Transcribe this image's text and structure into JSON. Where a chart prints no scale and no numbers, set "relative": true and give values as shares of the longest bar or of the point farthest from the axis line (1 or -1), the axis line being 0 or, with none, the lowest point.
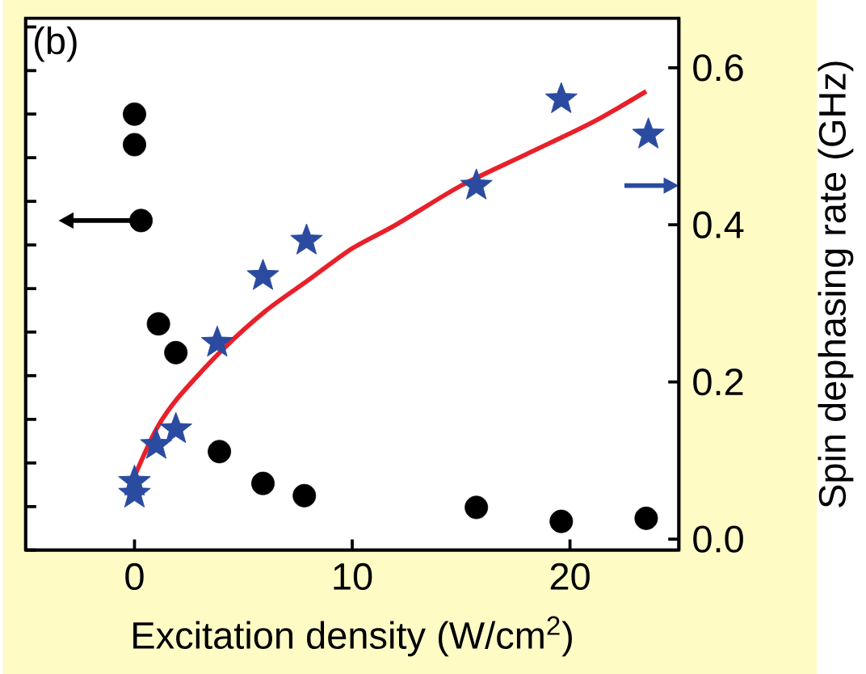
{
  "chart_data": {
    "type": "scatter",
    "relative": true,
    "xlabel": "Excitation density (W/cm$^{2}$)",
    "y2label": "Spin dephasing rate (GHz)",
    "annotations": [
      "(b)"
    ],
    "xlim": [
      -5,
      25
    ],
    "xticks": [
      0,
      10,
      20
    ],
    "y2lim": [
      -0.014,
      0.663
    ],
    "y2ticks": [
      {
        "value": 0,
        "label": "0.0"
      },
      0.2,
      0.4,
      0.6
    ],
    "grid": false,
    "series": [
      {
        "marker": "circle",
        "color": "#000000",
        "x": [
          0,
          0,
          0.3,
          1.1,
          1.9,
          3.9,
          5.9,
          7.8,
          15.7,
          19.6,
          23.5
        ],
        "values": [
          1,
          0.93,
          0.756,
          0.519,
          0.453,
          0.226,
          0.153,
          0.125,
          0.098,
          0.066,
          0.073
        ]
      },
      {
        "marker": "star",
        "axis": "y2",
        "color": "#2a4ba0",
        "x": [
          0,
          0,
          1,
          1.9,
          3.8,
          5.9,
          7.9,
          15.7,
          19.6,
          23.6
        ],
        "values": [
          0.058,
          0.073,
          0.12,
          0.14,
          0.25,
          0.335,
          0.38,
          0.45,
          0.56,
          0.515
        ]
      },
      {
        "type": "line",
        "marker": "none",
        "axis": "y2",
        "color": "#e8202a",
        "x": [
          0,
          1,
          2,
          4,
          6,
          8,
          10,
          12,
          15,
          18,
          21,
          23.5
        ],
        "values": [
          0.08,
          0.14,
          0.18,
          0.24,
          0.29,
          0.33,
          0.37,
          0.4,
          0.45,
          0.49,
          0.53,
          0.57
        ]
      }
    ]
  }
}
